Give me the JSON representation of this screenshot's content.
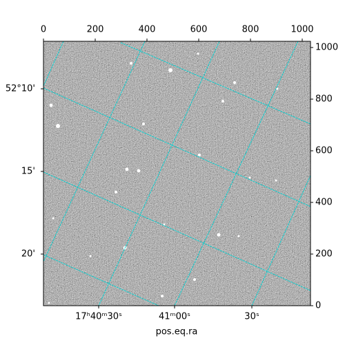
{
  "chart_data": {
    "type": "image",
    "xlabel": "pos.eq.ra",
    "xlim": [
      0,
      1032
    ],
    "ylim": [
      0,
      1024
    ],
    "xticks": [
      0,
      200,
      400,
      600,
      800,
      1000
    ],
    "yticks": [
      0,
      200,
      400,
      600,
      800,
      1000
    ],
    "ra_tick_labels": [
      "17ʰ40ᵐ30ˢ",
      "41ᵐ00ˢ",
      "30ˢ"
    ],
    "dec_tick_labels": [
      "52°10'",
      "15'",
      "20'"
    ],
    "grid_color": "#00d0d0"
  }
}
